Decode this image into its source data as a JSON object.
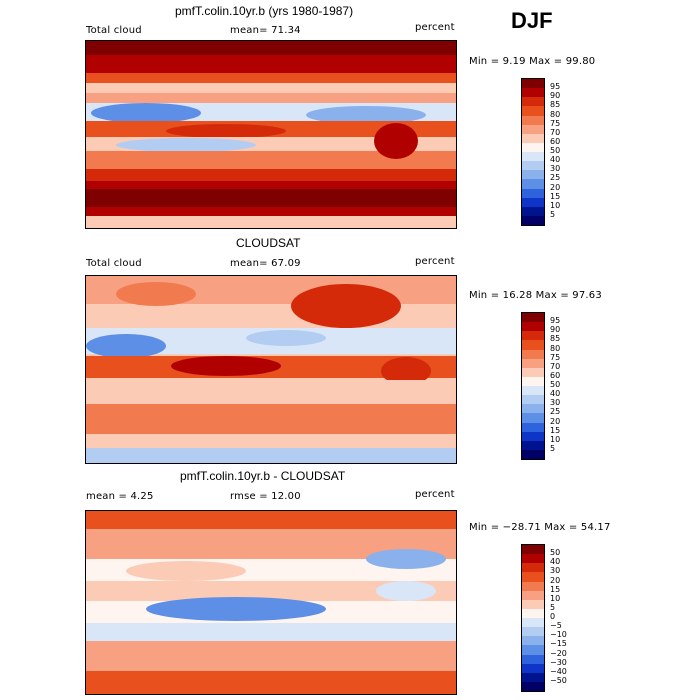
{
  "season": "DJF",
  "panels": [
    {
      "id": "model",
      "title": "pmfT.colin.10yr.b (yrs 1980-1987)",
      "left_label": "Total cloud",
      "mid_label": "mean=  71.34",
      "right_label": "percent",
      "minmax": "Min =   9.19 Max =  99.80",
      "colorbar_labels": [
        "95",
        "90",
        "85",
        "80",
        "75",
        "70",
        "60",
        "50",
        "40",
        "30",
        "25",
        "20",
        "15",
        "10",
        "5"
      ]
    },
    {
      "id": "obs",
      "title": "CLOUDSAT",
      "left_label": "Total cloud",
      "mid_label": "mean=  67.09",
      "right_label": "percent",
      "minmax": "Min =  16.28 Max =  97.63",
      "colorbar_labels": [
        "95",
        "90",
        "85",
        "80",
        "75",
        "70",
        "60",
        "50",
        "40",
        "30",
        "25",
        "20",
        "15",
        "10",
        "5"
      ]
    },
    {
      "id": "diff",
      "title": "pmfT.colin.10yr.b - CLOUDSAT",
      "left_label": "mean =    4.25",
      "mid_label": "rmse =   12.00",
      "right_label": "percent",
      "minmax": "Min = −28.71 Max =  54.17",
      "colorbar_labels": [
        "50",
        "40",
        "30",
        "20",
        "15",
        "10",
        "5",
        "0",
        "−5",
        "−10",
        "−15",
        "−20",
        "−30",
        "−40",
        "−50"
      ]
    }
  ],
  "colors": {
    "palette": [
      "#7f0000",
      "#b00000",
      "#d42a0a",
      "#e8501e",
      "#f27a4f",
      "#f7a182",
      "#fbcbb6",
      "#fff5f0",
      "#d8e6f8",
      "#b3cdf2",
      "#8bb1ec",
      "#5d8fe6",
      "#2f62dd",
      "#0e35c8",
      "#00138f",
      "#000066"
    ]
  }
}
